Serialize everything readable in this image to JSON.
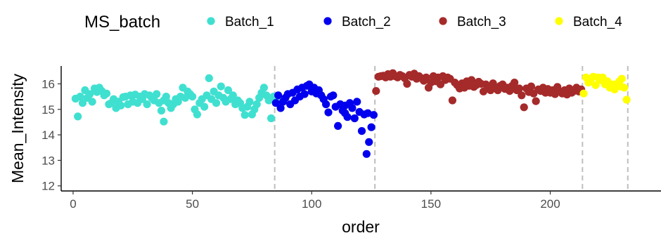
{
  "chart_data": {
    "type": "scatter",
    "xlabel": "order",
    "ylabel": "Mean_Intensity",
    "xlim": [
      -5,
      242
    ],
    "ylim": [
      11.8,
      16.7
    ],
    "xticks": [
      0,
      50,
      100,
      150,
      200
    ],
    "yticks": [
      12,
      13,
      14,
      15,
      16
    ],
    "grid": false,
    "legend": {
      "title": "MS_batch",
      "position": "top"
    },
    "batch_boundaries": [
      84.5,
      126.5,
      213.5,
      232.5
    ],
    "series": [
      {
        "name": "Batch_1",
        "color": "#40E0D0",
        "points": [
          [
            1,
            15.42
          ],
          [
            2,
            14.72
          ],
          [
            3,
            15.5
          ],
          [
            4,
            15.25
          ],
          [
            5,
            15.75
          ],
          [
            6,
            15.45
          ],
          [
            7,
            15.6
          ],
          [
            8,
            15.3
          ],
          [
            9,
            15.82
          ],
          [
            10,
            15.68
          ],
          [
            11,
            15.85
          ],
          [
            12,
            15.72
          ],
          [
            13,
            15.55
          ],
          [
            14,
            15.62
          ],
          [
            15,
            15.2
          ],
          [
            16,
            15.25
          ],
          [
            17,
            15.4
          ],
          [
            18,
            15.05
          ],
          [
            19,
            15.3
          ],
          [
            20,
            15.15
          ],
          [
            21,
            15.48
          ],
          [
            22,
            15.5
          ],
          [
            23,
            15.2
          ],
          [
            24,
            15.55
          ],
          [
            25,
            15.3
          ],
          [
            26,
            15.58
          ],
          [
            27,
            15.25
          ],
          [
            28,
            15.5
          ],
          [
            29,
            15.4
          ],
          [
            30,
            15.6
          ],
          [
            31,
            15.2
          ],
          [
            32,
            15.55
          ],
          [
            33,
            15.45
          ],
          [
            34,
            15.35
          ],
          [
            35,
            15.6
          ],
          [
            36,
            15.25
          ],
          [
            37,
            14.95
          ],
          [
            38,
            15.35
          ],
          [
            39,
            15.5
          ],
          [
            40,
            15.25
          ],
          [
            41,
            15.05
          ],
          [
            42,
            15.2
          ],
          [
            43,
            15.4
          ],
          [
            44,
            15.3
          ],
          [
            45,
            15.5
          ],
          [
            46,
            15.85
          ],
          [
            47,
            15.45
          ],
          [
            48,
            15.7
          ],
          [
            49,
            15.6
          ],
          [
            50,
            15.5
          ],
          [
            51,
            15.0
          ],
          [
            52,
            14.8
          ],
          [
            53,
            15.25
          ],
          [
            54,
            15.4
          ],
          [
            55,
            15.1
          ],
          [
            56,
            15.55
          ],
          [
            57,
            16.22
          ],
          [
            58,
            15.4
          ],
          [
            59,
            15.7
          ],
          [
            60,
            15.25
          ],
          [
            61,
            15.55
          ],
          [
            62,
            15.9
          ],
          [
            63,
            15.45
          ],
          [
            64,
            15.3
          ],
          [
            65,
            15.75
          ],
          [
            66,
            15.4
          ],
          [
            67,
            15.55
          ],
          [
            68,
            15.2
          ],
          [
            69,
            15.35
          ],
          [
            70,
            15.25
          ],
          [
            71,
            15.05
          ],
          [
            72,
            14.78
          ],
          [
            73,
            15.1
          ],
          [
            74,
            15.3
          ],
          [
            75,
            14.8
          ],
          [
            76,
            15.0
          ],
          [
            77,
            15.2
          ],
          [
            78,
            15.45
          ],
          [
            79,
            15.65
          ],
          [
            80,
            15.85
          ],
          [
            81,
            15.55
          ],
          [
            82,
            15.35
          ],
          [
            83,
            14.65
          ],
          [
            84,
            15.5
          ],
          [
            85,
            15.45
          ],
          [
            38,
            14.52
          ]
        ]
      },
      {
        "name": "Batch_2",
        "color": "#0000EE",
        "points": [
          [
            85,
            15.25
          ],
          [
            86,
            15.55
          ],
          [
            87,
            15.05
          ],
          [
            88,
            15.3
          ],
          [
            89,
            15.45
          ],
          [
            90,
            15.6
          ],
          [
            91,
            15.2
          ],
          [
            92,
            15.65
          ],
          [
            93,
            15.35
          ],
          [
            94,
            15.78
          ],
          [
            95,
            15.5
          ],
          [
            96,
            15.85
          ],
          [
            97,
            15.6
          ],
          [
            98,
            15.92
          ],
          [
            99,
            15.98
          ],
          [
            100,
            15.7
          ],
          [
            101,
            15.85
          ],
          [
            102,
            15.62
          ],
          [
            103,
            15.75
          ],
          [
            104,
            15.55
          ],
          [
            105,
            15.4
          ],
          [
            106,
            15.2
          ],
          [
            107,
            14.88
          ],
          [
            108,
            15.5
          ],
          [
            109,
            15.55
          ],
          [
            110,
            15.1
          ],
          [
            111,
            14.35
          ],
          [
            112,
            15.2
          ],
          [
            113,
            14.95
          ],
          [
            114,
            15.15
          ],
          [
            115,
            14.7
          ],
          [
            116,
            15.25
          ],
          [
            117,
            15.05
          ],
          [
            118,
            14.65
          ],
          [
            119,
            15.3
          ],
          [
            120,
            14.9
          ],
          [
            121,
            14.15
          ],
          [
            122,
            14.8
          ],
          [
            123,
            13.25
          ],
          [
            124,
            13.72
          ],
          [
            125,
            14.3
          ],
          [
            126,
            14.78
          ],
          [
            123.5,
            14.85
          ],
          [
            114,
            14.85
          ]
        ]
      },
      {
        "name": "Batch_3",
        "color": "#A52A2A",
        "points": [
          [
            127,
            15.72
          ],
          [
            128,
            16.28
          ],
          [
            129,
            16.3
          ],
          [
            130,
            16.32
          ],
          [
            131,
            16.25
          ],
          [
            132,
            16.38
          ],
          [
            133,
            16.28
          ],
          [
            134,
            16.42
          ],
          [
            135,
            16.3
          ],
          [
            136,
            16.25
          ],
          [
            137,
            16.35
          ],
          [
            138,
            16.3
          ],
          [
            139,
            16.22
          ],
          [
            140,
            16.0
          ],
          [
            141,
            16.35
          ],
          [
            142,
            16.28
          ],
          [
            143,
            16.4
          ],
          [
            144,
            16.2
          ],
          [
            145,
            16.3
          ],
          [
            146,
            16.22
          ],
          [
            147,
            16.12
          ],
          [
            148,
            16.25
          ],
          [
            149,
            15.85
          ],
          [
            150,
            16.05
          ],
          [
            151,
            16.3
          ],
          [
            152,
            16.1
          ],
          [
            153,
            16.25
          ],
          [
            154,
            15.98
          ],
          [
            155,
            16.3
          ],
          [
            156,
            16.15
          ],
          [
            157,
            16.25
          ],
          [
            158,
            16.2
          ],
          [
            159,
            15.35
          ],
          [
            160,
            16.05
          ],
          [
            161,
            15.95
          ],
          [
            162,
            15.82
          ],
          [
            163,
            16.02
          ],
          [
            164,
            15.85
          ],
          [
            165,
            16.1
          ],
          [
            166,
            15.92
          ],
          [
            167,
            16.15
          ],
          [
            168,
            15.88
          ],
          [
            169,
            15.95
          ],
          [
            170,
            16.08
          ],
          [
            171,
            16.0
          ],
          [
            172,
            15.7
          ],
          [
            173,
            15.98
          ],
          [
            174,
            15.82
          ],
          [
            175,
            15.75
          ],
          [
            176,
            16.02
          ],
          [
            177,
            15.85
          ],
          [
            178,
            15.75
          ],
          [
            179,
            15.92
          ],
          [
            180,
            15.98
          ],
          [
            181,
            15.8
          ],
          [
            182,
            15.85
          ],
          [
            183,
            15.72
          ],
          [
            184,
            15.92
          ],
          [
            185,
            16.05
          ],
          [
            186,
            15.75
          ],
          [
            187,
            15.82
          ],
          [
            188,
            15.55
          ],
          [
            189,
            15.08
          ],
          [
            190,
            15.82
          ],
          [
            191,
            15.68
          ],
          [
            192,
            15.9
          ],
          [
            193,
            15.62
          ],
          [
            194,
            15.32
          ],
          [
            195,
            15.78
          ],
          [
            196,
            15.72
          ],
          [
            197,
            15.85
          ],
          [
            198,
            15.65
          ],
          [
            199,
            15.8
          ],
          [
            200,
            15.65
          ],
          [
            201,
            15.75
          ],
          [
            202,
            15.6
          ],
          [
            203,
            15.88
          ],
          [
            204,
            15.7
          ],
          [
            205,
            15.62
          ],
          [
            206,
            15.75
          ],
          [
            207,
            15.58
          ],
          [
            208,
            15.82
          ],
          [
            209,
            15.65
          ],
          [
            210,
            15.72
          ],
          [
            211,
            15.85
          ],
          [
            212,
            15.7
          ],
          [
            213,
            15.78
          ]
        ]
      },
      {
        "name": "Batch_4",
        "color": "#FFFF00",
        "points": [
          [
            214,
            15.62
          ],
          [
            215,
            16.25
          ],
          [
            216,
            16.05
          ],
          [
            217,
            16.2
          ],
          [
            218,
            16.28
          ],
          [
            219,
            15.95
          ],
          [
            220,
            16.25
          ],
          [
            221,
            16.15
          ],
          [
            222,
            16.25
          ],
          [
            223,
            15.98
          ],
          [
            224,
            16.1
          ],
          [
            225,
            15.85
          ],
          [
            226,
            15.98
          ],
          [
            227,
            15.78
          ],
          [
            228,
            16.0
          ],
          [
            229,
            16.1
          ],
          [
            230,
            16.2
          ],
          [
            231,
            15.85
          ],
          [
            232,
            15.38
          ],
          [
            229.5,
            15.9
          ]
        ]
      }
    ]
  }
}
